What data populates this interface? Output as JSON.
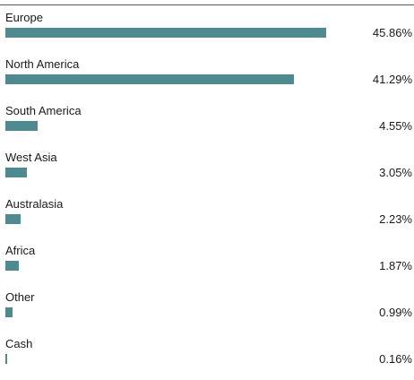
{
  "chart_data": {
    "type": "bar",
    "orientation": "horizontal",
    "unit": "%",
    "categories": [
      "Europe",
      "North America",
      "South America",
      "West Asia",
      "Australasia",
      "Africa",
      "Other",
      "Cash"
    ],
    "values": [
      45.86,
      41.29,
      4.55,
      3.05,
      2.23,
      1.87,
      0.99,
      0.16
    ],
    "value_labels": [
      "45.86%",
      "41.29%",
      "4.55%",
      "3.05%",
      "2.23%",
      "1.87%",
      "0.99%",
      "0.16%"
    ],
    "xlim": [
      0,
      50
    ],
    "grid": false,
    "legend": "none",
    "bar_color": "#4f8a90"
  }
}
